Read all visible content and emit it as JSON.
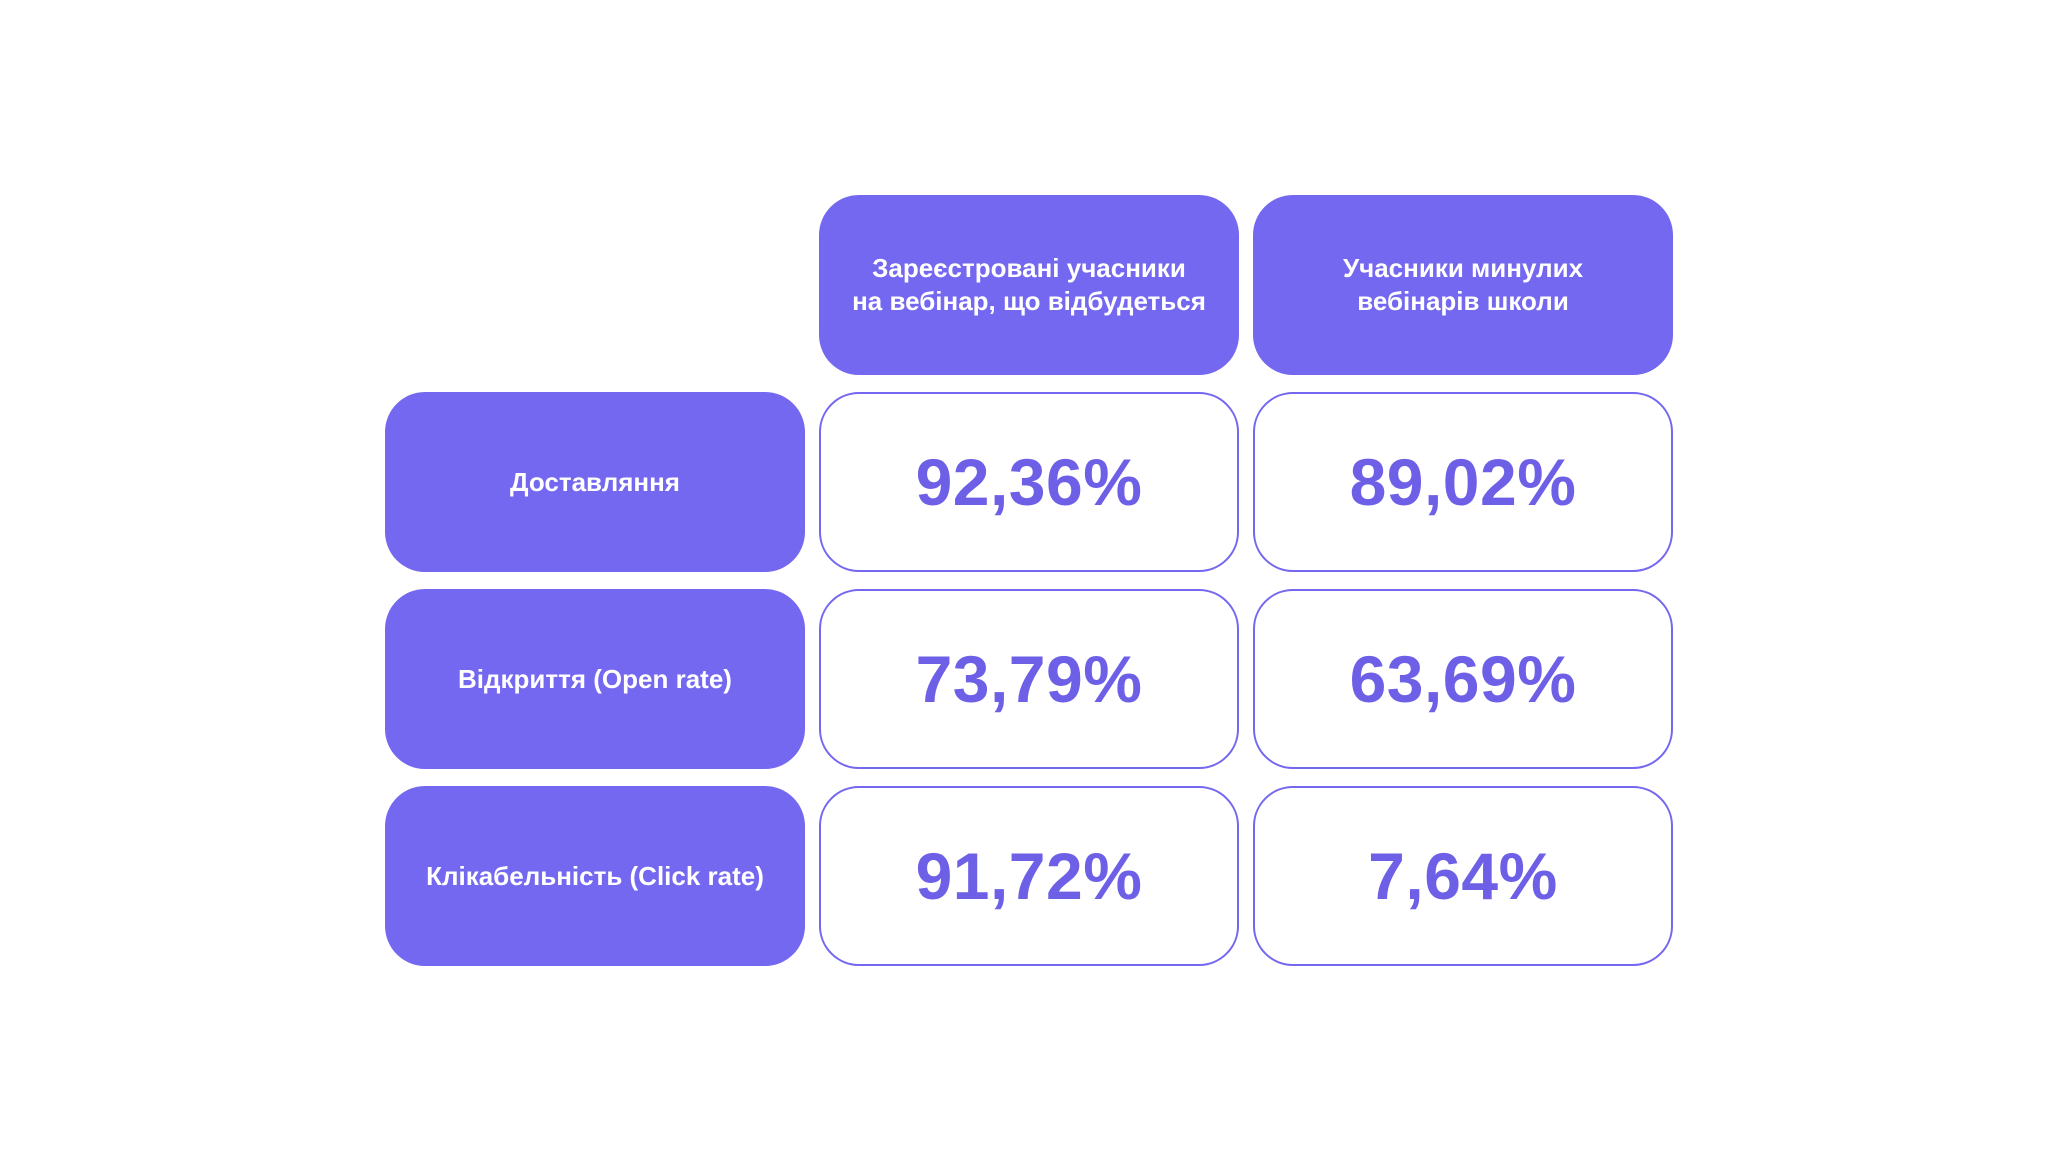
{
  "table": {
    "columns": [
      "Зареєстровані учасники\nна вебінар, що відбудеться",
      "Учасники минулих\nвебінарів школи"
    ],
    "rows": [
      {
        "label": "Доставляння",
        "values": [
          "92,36%",
          "89,02%"
        ]
      },
      {
        "label": "Відкриття (Open rate)",
        "values": [
          "73,79%",
          "63,69%"
        ]
      },
      {
        "label": "Клікабельність (Click rate)",
        "values": [
          "91,72%",
          "7,64%"
        ]
      }
    ]
  },
  "colors": {
    "accent": "#7467f0",
    "value_text": "#6e60e6",
    "label_text": "#ffffff",
    "background": "#ffffff"
  }
}
